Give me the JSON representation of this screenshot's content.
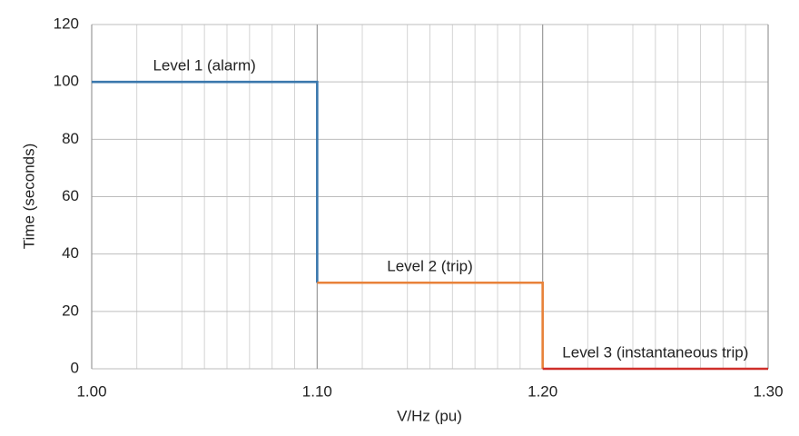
{
  "chart_data": {
    "type": "line",
    "xlabel": "V/Hz (pu)",
    "ylabel": "Time (seconds)",
    "xlim": [
      1.0,
      1.3
    ],
    "ylim": [
      0,
      120
    ],
    "xticks": [
      {
        "value": 1.0,
        "label": "1.00"
      },
      {
        "value": 1.1,
        "label": "1.10"
      },
      {
        "value": 1.2,
        "label": "1.20"
      },
      {
        "value": 1.3,
        "label": "1.30"
      }
    ],
    "xminorticks": [
      1.02,
      1.04,
      1.05,
      1.06,
      1.07,
      1.08,
      1.09,
      1.12,
      1.14,
      1.15,
      1.16,
      1.17,
      1.18,
      1.19,
      1.22,
      1.24,
      1.25,
      1.26,
      1.27,
      1.28,
      1.29
    ],
    "yticks": [
      0,
      20,
      40,
      60,
      80,
      100,
      120
    ],
    "grid": true,
    "series": [
      {
        "name": "Level 1 (alarm)",
        "color": "#3b78ad",
        "x": [
          1.0,
          1.1,
          1.1
        ],
        "values": [
          100,
          100,
          30
        ]
      },
      {
        "name": "Level 2 (trip)",
        "color": "#e8823a",
        "x": [
          1.1,
          1.2,
          1.2
        ],
        "values": [
          30,
          30,
          0
        ]
      },
      {
        "name": "Level 3 (instantaneous trip)",
        "color": "#cf2f2a",
        "x": [
          1.2,
          1.3
        ],
        "values": [
          0,
          0
        ]
      }
    ]
  }
}
